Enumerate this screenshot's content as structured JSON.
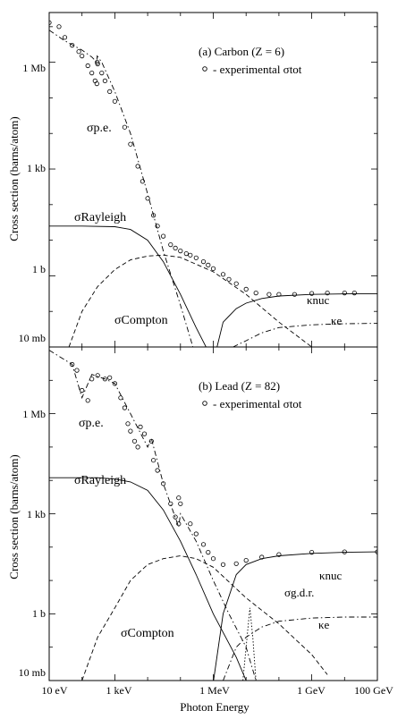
{
  "figure": {
    "xlabel": "Photon Energy",
    "ylabel": "Cross section  (barns/atom)",
    "x_ticks": [
      "10 eV",
      "1 keV",
      "1 MeV",
      "1 GeV",
      "100 GeV"
    ]
  },
  "chart_data": [
    {
      "type": "line",
      "panel_title": "(a) Carbon (Z = 6)",
      "x_scale": "log",
      "y_scale": "log",
      "xlim_eV": [
        10,
        100000000000.0
      ],
      "ylim_barns": [
        0.01,
        25000000.0
      ],
      "y_ticks": [
        {
          "label": "1 Mb",
          "value": 1000000.0
        },
        {
          "label": "1 kb",
          "value": 1000.0
        },
        {
          "label": "1 b",
          "value": 1
        },
        {
          "label": "10 mb",
          "value": 0.01
        }
      ],
      "legend": "- experimental σtot",
      "series": [
        {
          "name": "experimental σtot",
          "style": "circles",
          "points": [
            [
              10,
              13000000.0
            ],
            [
              20,
              10000000.0
            ],
            [
              30,
              5000000.0
            ],
            [
              50,
              3000000.0
            ],
            [
              80,
              2000000.0
            ],
            [
              100,
              1500000.0
            ],
            [
              150,
              800000.0
            ],
            [
              200,
              500000.0
            ],
            [
              250,
              300000.0
            ],
            [
              283,
              250000.0
            ],
            [
              290,
              1000000.0
            ],
            [
              300,
              900000.0
            ],
            [
              400,
              500000.0
            ],
            [
              500,
              300000.0
            ],
            [
              700,
              150000.0
            ],
            [
              1000,
              80000.0
            ],
            [
              2000,
              15000.0
            ],
            [
              3000,
              5000.0
            ],
            [
              5000,
              1200.0
            ],
            [
              7000,
              450
            ],
            [
              10000.0,
              150
            ],
            [
              15000.0,
              50
            ],
            [
              20000.0,
              25
            ],
            [
              30000.0,
              13
            ],
            [
              50000.0,
              7.5
            ],
            [
              70000.0,
              6
            ],
            [
              100000.0,
              5
            ],
            [
              150000.0,
              4.2
            ],
            [
              200000.0,
              3.8
            ],
            [
              300000.0,
              3.2
            ],
            [
              500000.0,
              2.5
            ],
            [
              700000.0,
              2
            ],
            [
              1000000.0,
              1.6
            ],
            [
              2000000.0,
              1.1
            ],
            [
              3000000.0,
              0.8
            ],
            [
              5000000.0,
              0.6
            ],
            [
              10000000.0,
              0.42
            ],
            [
              20000000.0,
              0.33
            ],
            [
              50000000.0,
              0.3
            ],
            [
              100000000.0,
              0.3
            ],
            [
              300000000.0,
              0.3
            ],
            [
              1000000000.0,
              0.32
            ],
            [
              3000000000.0,
              0.33
            ],
            [
              10000000000.0,
              0.33
            ],
            [
              20000000000.0,
              0.33
            ]
          ]
        },
        {
          "name": "σp.e.",
          "style": "dash-dot",
          "points": [
            [
              10,
              8000000.0
            ],
            [
              30,
              4000000.0
            ],
            [
              100,
              2200000.0
            ],
            [
              200,
              1400000.0
            ],
            [
              283,
              1000000.0
            ],
            [
              290,
              1500000.0
            ],
            [
              400,
              1000000.0
            ],
            [
              1000,
              150000.0
            ],
            [
              3000,
              10000.0
            ],
            [
              10000.0,
              200
            ],
            [
              30000.0,
              5
            ],
            [
              100000.0,
              0.15
            ],
            [
              300000.0,
              0.005
            ]
          ]
        },
        {
          "name": "σRayleigh",
          "style": "solid",
          "points": [
            [
              10,
              25
            ],
            [
              100,
              25
            ],
            [
              1000,
              24
            ],
            [
              3000,
              20
            ],
            [
              10000.0,
              10
            ],
            [
              30000.0,
              2.5
            ],
            [
              100000.0,
              0.3
            ],
            [
              300000.0,
              0.035
            ],
            [
              600000.0,
              0.01
            ]
          ]
        },
        {
          "name": "σCompton",
          "style": "dashed",
          "points": [
            [
              40,
              0.01
            ],
            [
              100,
              0.1
            ],
            [
              300,
              0.5
            ],
            [
              1000,
              1.5
            ],
            [
              3000,
              2.8
            ],
            [
              10000.0,
              3.6
            ],
            [
              30000.0,
              3.8
            ],
            [
              100000.0,
              3.3
            ],
            [
              1000000.0,
              1.3
            ],
            [
              10000000.0,
              0.3
            ],
            [
              100000000.0,
              0.05
            ],
            [
              1000000000.0,
              0.01
            ]
          ]
        },
        {
          "name": "κnuc",
          "style": "solid",
          "points": [
            [
              1300000.0,
              0.01
            ],
            [
              2000000.0,
              0.05
            ],
            [
              5000000.0,
              0.12
            ],
            [
              10000000.0,
              0.17
            ],
            [
              30000000.0,
              0.23
            ],
            [
              100000000.0,
              0.27
            ],
            [
              1000000000.0,
              0.3
            ],
            [
              10000000000.0,
              0.31
            ],
            [
              100000000000.0,
              0.31
            ]
          ]
        },
        {
          "name": "κe",
          "style": "dash-dot",
          "points": [
            [
              4000000.0,
              0.01
            ],
            [
              10000000.0,
              0.015
            ],
            [
              30000000.0,
              0.025
            ],
            [
              100000000.0,
              0.035
            ],
            [
              1000000000.0,
              0.042
            ],
            [
              10000000000.0,
              0.045
            ],
            [
              100000000000.0,
              0.046
            ]
          ]
        }
      ]
    },
    {
      "type": "line",
      "panel_title": "(b) Lead (Z = 82)",
      "x_scale": "log",
      "y_scale": "log",
      "xlim_eV": [
        10,
        100000000000.0
      ],
      "ylim_barns": [
        0.01,
        100000000.0
      ],
      "y_ticks": [
        {
          "label": "1 Mb",
          "value": 1000000.0
        },
        {
          "label": "1 kb",
          "value": 1000.0
        },
        {
          "label": "1 b",
          "value": 1
        },
        {
          "label": "10 mb",
          "value": 0.01
        }
      ],
      "legend": "- experimental σtot",
      "series": [
        {
          "name": "experimental σtot",
          "style": "circles",
          "points": [
            [
              50,
              30000000.0
            ],
            [
              70,
              20000000.0
            ],
            [
              100,
              5000000.0
            ],
            [
              150,
              2500000.0
            ],
            [
              200,
              11000000.0
            ],
            [
              300,
              14000000.0
            ],
            [
              500,
              11000000.0
            ],
            [
              700,
              12000000.0
            ],
            [
              1000,
              8000000.0
            ],
            [
              1500,
              3000000.0
            ],
            [
              2000,
              1500000.0
            ],
            [
              2500,
              500000.0
            ],
            [
              3000,
              300000.0
            ],
            [
              4000,
              150000.0
            ],
            [
              5000,
              100000.0
            ],
            [
              6000,
              400000.0
            ],
            [
              8000,
              250000.0
            ],
            [
              13000.0,
              150000.0
            ],
            [
              15000.0,
              40000.0
            ],
            [
              20000.0,
              20000.0
            ],
            [
              30000.0,
              8000.0
            ],
            [
              50000.0,
              2000.0
            ],
            [
              70000.0,
              800
            ],
            [
              88000.0,
              500
            ],
            [
              88000.0,
              3000.0
            ],
            [
              100000.0,
              2000.0
            ],
            [
              200000.0,
              500
            ],
            [
              300000.0,
              250
            ],
            [
              500000.0,
              120
            ],
            [
              700000.0,
              70
            ],
            [
              1000000.0,
              45
            ],
            [
              2000000.0,
              30
            ],
            [
              5000000.0,
              32
            ],
            [
              10000000.0,
              40
            ],
            [
              30000000.0,
              50
            ],
            [
              100000000.0,
              60
            ],
            [
              1000000000.0,
              70
            ],
            [
              10000000000.0,
              72
            ],
            [
              100000000000.0,
              72
            ]
          ]
        },
        {
          "name": "σp.e.",
          "style": "dash-dot",
          "points": [
            [
              10,
              80000000.0
            ],
            [
              50,
              30000000.0
            ],
            [
              100,
              3000000.0
            ],
            [
              200,
              15000000.0
            ],
            [
              500,
              11000000.0
            ],
            [
              1000,
              8000000.0
            ],
            [
              3000,
              1000000.0
            ],
            [
              10000.0,
              100000.0
            ],
            [
              13000.0,
              180000.0
            ],
            [
              30000.0,
              8000.0
            ],
            [
              88000.0,
              400
            ],
            [
              100000.0,
              1000.0
            ],
            [
              300000.0,
              150
            ],
            [
              1000000.0,
              10
            ],
            [
              3000000.0,
              1
            ],
            [
              10000000.0,
              0.1
            ],
            [
              20000000.0,
              0.01
            ]
          ]
        },
        {
          "name": "σRayleigh",
          "style": "solid",
          "points": [
            [
              10,
              12000.0
            ],
            [
              300,
              12000.0
            ],
            [
              1000,
              11000.0
            ],
            [
              3000,
              9000.0
            ],
            [
              10000.0,
              5000.0
            ],
            [
              30000.0,
              1300.0
            ],
            [
              100000.0,
              150
            ],
            [
              300000.0,
              15
            ],
            [
              1000000.0,
              1
            ],
            [
              5000000.0,
              0.05
            ],
            [
              10000000.0,
              0.01
            ]
          ]
        },
        {
          "name": "σCompton",
          "style": "dashed",
          "points": [
            [
              100,
              0.01
            ],
            [
              300,
              0.2
            ],
            [
              1000,
              1.5
            ],
            [
              3000,
              10
            ],
            [
              10000.0,
              30
            ],
            [
              30000.0,
              45
            ],
            [
              100000.0,
              55
            ],
            [
              300000.0,
              45
            ],
            [
              1000000.0,
              25
            ],
            [
              10000000.0,
              3
            ],
            [
              100000000.0,
              0.5
            ],
            [
              1000000000.0,
              0.06
            ],
            [
              3000000000.0,
              0.015
            ]
          ]
        },
        {
          "name": "κnuc",
          "style": "solid",
          "points": [
            [
              1020000.0,
              0.01
            ],
            [
              2000000.0,
              1
            ],
            [
              5000000.0,
              15
            ],
            [
              10000000.0,
              30
            ],
            [
              30000000.0,
              45
            ],
            [
              100000000.0,
              55
            ],
            [
              1000000000.0,
              65
            ],
            [
              10000000000.0,
              70
            ],
            [
              100000000000.0,
              72
            ]
          ]
        },
        {
          "name": "σg.d.r.",
          "style": "dotted",
          "points": [
            [
              8000000.0,
              0.01
            ],
            [
              10000000.0,
              0.1
            ],
            [
              13000000.0,
              1.5
            ],
            [
              16000000.0,
              0.2
            ],
            [
              20000000.0,
              0.01
            ]
          ]
        },
        {
          "name": "κe",
          "style": "dash-dot",
          "points": [
            [
              2000000.0,
              0.01
            ],
            [
              5000000.0,
              0.1
            ],
            [
              10000000.0,
              0.2
            ],
            [
              30000000.0,
              0.4
            ],
            [
              100000000.0,
              0.6
            ],
            [
              1000000000.0,
              0.75
            ],
            [
              10000000000.0,
              0.8
            ],
            [
              100000000000.0,
              0.8
            ]
          ]
        }
      ]
    }
  ]
}
